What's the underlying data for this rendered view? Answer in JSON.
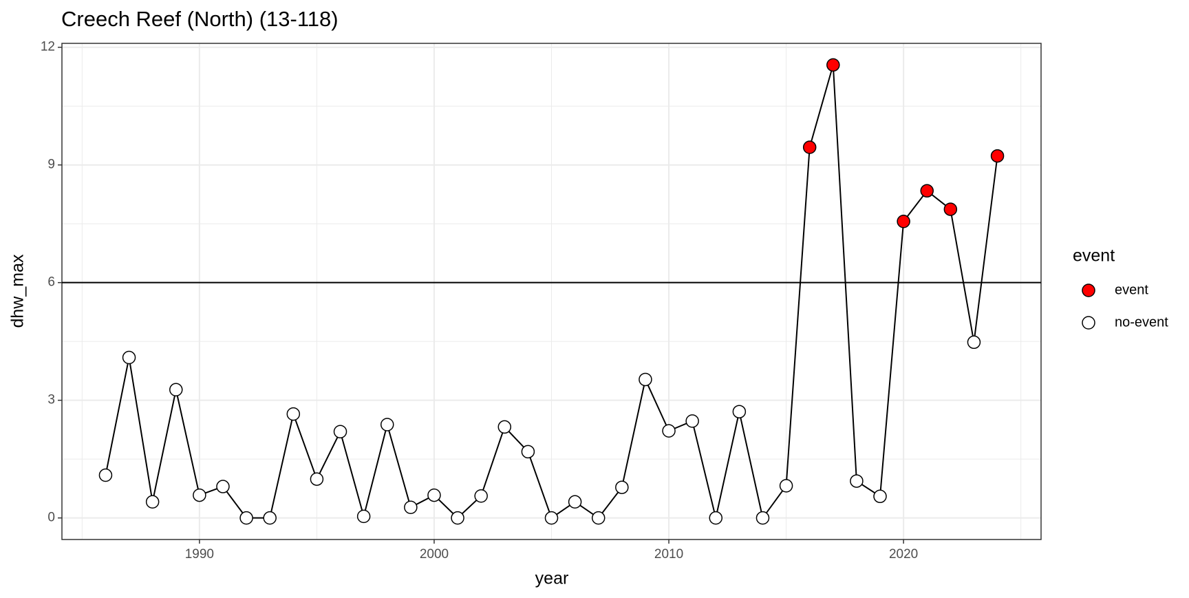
{
  "chart_data": {
    "type": "line",
    "title": "Creech Reef (North) (13-118)",
    "xlabel": "year",
    "ylabel": "dhw_max",
    "x": [
      1986,
      1987,
      1988,
      1989,
      1990,
      1991,
      1992,
      1993,
      1994,
      1995,
      1996,
      1997,
      1998,
      1999,
      2000,
      2001,
      2002,
      2003,
      2004,
      2005,
      2006,
      2007,
      2008,
      2009,
      2010,
      2011,
      2012,
      2013,
      2014,
      2015,
      2016,
      2017,
      2018,
      2019,
      2020,
      2021,
      2022,
      2023,
      2024
    ],
    "series": [
      {
        "color": "#000000",
        "values": [
          1.09,
          4.09,
          0.41,
          3.27,
          0.58,
          0.8,
          0,
          0,
          2.65,
          0.99,
          2.2,
          0.04,
          2.38,
          0.27,
          0.58,
          0,
          0.56,
          2.32,
          1.69,
          0,
          0.41,
          0,
          0.78,
          3.53,
          2.22,
          2.47,
          0,
          2.71,
          0,
          0.82,
          9.45,
          11.55,
          0.94,
          0.55,
          7.56,
          8.34,
          7.87,
          4.48,
          9.23
        ],
        "groups": [
          "no-event",
          "no-event",
          "no-event",
          "no-event",
          "no-event",
          "no-event",
          "no-event",
          "no-event",
          "no-event",
          "no-event",
          "no-event",
          "no-event",
          "no-event",
          "no-event",
          "no-event",
          "no-event",
          "no-event",
          "no-event",
          "no-event",
          "no-event",
          "no-event",
          "no-event",
          "no-event",
          "no-event",
          "no-event",
          "no-event",
          "no-event",
          "no-event",
          "no-event",
          "no-event",
          "event",
          "event",
          "no-event",
          "no-event",
          "event",
          "event",
          "event",
          "no-event",
          "event"
        ]
      }
    ],
    "legend": {
      "title": "event",
      "position": "right",
      "entries": [
        {
          "name": "event",
          "color": "#ff0000"
        },
        {
          "name": "no-event",
          "color": "#ffffff"
        }
      ]
    },
    "hline": 6,
    "xlim": [
      1984.14,
      2025.86
    ],
    "ylim": [
      -0.55,
      12.1
    ],
    "xticks": [
      1990,
      2000,
      2010,
      2020
    ],
    "yticks": [
      0,
      3,
      6,
      9,
      12
    ],
    "xminor": [
      1985,
      1995,
      2005,
      2015,
      2025
    ],
    "yminor": [
      1.5,
      4.5,
      7.5,
      10.5
    ],
    "grid": true
  }
}
